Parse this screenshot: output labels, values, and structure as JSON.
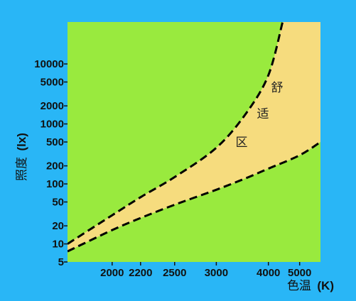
{
  "colors": {
    "background": "#29b6f6",
    "region": "#99ea3e",
    "comfort_zone": "#f6dc7e",
    "curve": "#000000"
  },
  "chart_data": {
    "type": "area",
    "x_scale": "reciprocal",
    "y_scale": "log",
    "xlim": [
      1750,
      6000
    ],
    "ylim": [
      5,
      50000
    ],
    "x_ticks": [
      2000,
      2200,
      2500,
      3000,
      4000,
      5000
    ],
    "x_tick_labels": [
      "2000",
      "2200",
      "2500",
      "3000",
      "4000",
      "5000"
    ],
    "y_ticks": [
      5,
      10,
      20,
      50,
      100,
      200,
      500,
      1000,
      2000,
      5000,
      10000
    ],
    "y_tick_labels": [
      "5",
      "10",
      "20",
      "50",
      "100",
      "200",
      "500",
      "1000",
      "2000",
      "5000",
      "10000"
    ],
    "xlabel": "色温",
    "xlabel_unit": "(K)",
    "ylabel": "照度",
    "ylabel_unit": "(lx)",
    "annotation": [
      "舒",
      "适",
      "区"
    ],
    "grid": false,
    "series": [
      {
        "style": "dashed",
        "x": [
          1750,
          2000,
          2200,
          2500,
          3000,
          3500,
          4000,
          4400
        ],
        "y": [
          10,
          30,
          60,
          130,
          400,
          1500,
          6500,
          50000
        ]
      },
      {
        "style": "dashed",
        "x": [
          1750,
          2000,
          2200,
          2500,
          3000,
          3500,
          4000,
          5000,
          6000
        ],
        "y": [
          7.5,
          17,
          27,
          45,
          80,
          125,
          180,
          300,
          500
        ]
      }
    ]
  }
}
